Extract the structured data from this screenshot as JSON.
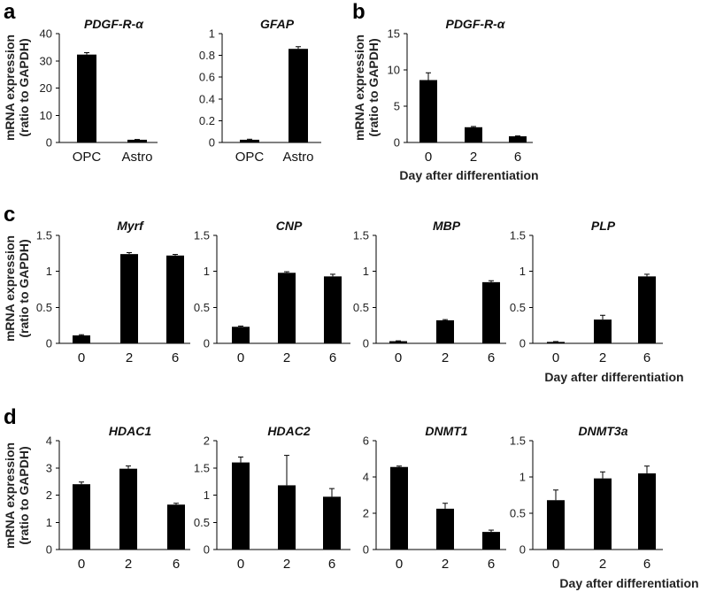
{
  "panel_labels": {
    "a": "a",
    "b": "b",
    "c": "c",
    "d": "d"
  },
  "ylabel_line1": "mRNA expression",
  "ylabel_line2": "(ratio to GAPDH)",
  "xlabel_day": "Day after differentiation",
  "chart_data": [
    {
      "id": "a1",
      "panel": "a",
      "type": "bar",
      "title": "PDGF-R-α",
      "categories": [
        "OPC",
        "Astro"
      ],
      "values": [
        32.3,
        1.0
      ],
      "errors": [
        0.7,
        0.1
      ],
      "ylim": [
        0,
        40
      ],
      "yticks": [
        0,
        10,
        20,
        30,
        40
      ],
      "ytick_labels": [
        "0",
        "10",
        "20",
        "30",
        "40"
      ]
    },
    {
      "id": "a2",
      "panel": "a",
      "type": "bar",
      "title": "GFAP",
      "categories": [
        "OPC",
        "Astro"
      ],
      "values": [
        0.025,
        0.86
      ],
      "errors": [
        0.005,
        0.02
      ],
      "ylim": [
        0,
        1
      ],
      "yticks": [
        0,
        0.2,
        0.4,
        0.6,
        0.8,
        1
      ],
      "ytick_labels": [
        "0",
        "0.2",
        "0.4",
        "0.6",
        "0.8",
        "1"
      ]
    },
    {
      "id": "b1",
      "panel": "b",
      "type": "bar",
      "title": "PDGF-R-α",
      "categories": [
        "0",
        "2",
        "6"
      ],
      "values": [
        8.6,
        2.1,
        0.85
      ],
      "errors": [
        1.0,
        0.1,
        0.05
      ],
      "ylim": [
        0,
        15
      ],
      "yticks": [
        0,
        5,
        10,
        15
      ],
      "ytick_labels": [
        "0",
        "5",
        "10",
        "15"
      ],
      "xlabel": "Day after differentiation"
    },
    {
      "id": "c1",
      "panel": "c",
      "type": "bar",
      "title": "Myrf",
      "categories": [
        "0",
        "2",
        "6"
      ],
      "values": [
        0.11,
        1.24,
        1.22
      ],
      "errors": [
        0.01,
        0.02,
        0.015
      ],
      "ylim": [
        0,
        1.5
      ],
      "yticks": [
        0,
        0.5,
        1,
        1.5
      ],
      "ytick_labels": [
        "0",
        "0.5",
        "1",
        "1.5"
      ]
    },
    {
      "id": "c2",
      "panel": "c",
      "type": "bar",
      "title": "CNP",
      "categories": [
        "0",
        "2",
        "6"
      ],
      "values": [
        0.23,
        0.98,
        0.93
      ],
      "errors": [
        0.01,
        0.015,
        0.03
      ],
      "ylim": [
        0,
        1.5
      ],
      "yticks": [
        0,
        0.5,
        1,
        1.5
      ],
      "ytick_labels": [
        "0",
        "0.5",
        "1",
        "1.5"
      ]
    },
    {
      "id": "c3",
      "panel": "c",
      "type": "bar",
      "title": "MBP",
      "categories": [
        "0",
        "2",
        "6"
      ],
      "values": [
        0.03,
        0.32,
        0.85
      ],
      "errors": [
        0.005,
        0.01,
        0.02
      ],
      "ylim": [
        0,
        1.5
      ],
      "yticks": [
        0,
        0.5,
        1,
        1.5
      ],
      "ytick_labels": [
        "0",
        "0.5",
        "1",
        "1.5"
      ]
    },
    {
      "id": "c4",
      "panel": "c",
      "type": "bar",
      "title": "PLP",
      "categories": [
        "0",
        "2",
        "6"
      ],
      "values": [
        0.02,
        0.33,
        0.93
      ],
      "errors": [
        0.005,
        0.06,
        0.03
      ],
      "ylim": [
        0,
        1.5
      ],
      "yticks": [
        0,
        0.5,
        1,
        1.5
      ],
      "ytick_labels": [
        "0",
        "0.5",
        "1",
        "1.5"
      ],
      "xlabel": "Day after differentiation"
    },
    {
      "id": "d1",
      "panel": "d",
      "type": "bar",
      "title": "HDAC1",
      "categories": [
        "0",
        "2",
        "6"
      ],
      "values": [
        2.4,
        2.97,
        1.65
      ],
      "errors": [
        0.08,
        0.1,
        0.05
      ],
      "ylim": [
        0,
        4
      ],
      "yticks": [
        0,
        1,
        2,
        3,
        4
      ],
      "ytick_labels": [
        "0",
        "1",
        "2",
        "3",
        "4"
      ]
    },
    {
      "id": "d2",
      "panel": "d",
      "type": "bar",
      "title": "HDAC2",
      "categories": [
        "0",
        "2",
        "6"
      ],
      "values": [
        1.6,
        1.18,
        0.97
      ],
      "errors": [
        0.1,
        0.55,
        0.15
      ],
      "ylim": [
        0,
        2
      ],
      "yticks": [
        0,
        0.5,
        1,
        1.5,
        2
      ],
      "ytick_labels": [
        "0",
        "0.5",
        "1",
        "1.5",
        "2"
      ]
    },
    {
      "id": "d3",
      "panel": "d",
      "type": "bar",
      "title": "DNMT1",
      "categories": [
        "0",
        "2",
        "6"
      ],
      "values": [
        4.55,
        2.25,
        0.97
      ],
      "errors": [
        0.05,
        0.3,
        0.1
      ],
      "ylim": [
        0,
        6
      ],
      "yticks": [
        0,
        2,
        4,
        6
      ],
      "ytick_labels": [
        "0",
        "2",
        "4",
        "6"
      ]
    },
    {
      "id": "d4",
      "panel": "d",
      "type": "bar",
      "title": "DNMT3a",
      "categories": [
        "0",
        "2",
        "6"
      ],
      "values": [
        0.68,
        0.98,
        1.05
      ],
      "errors": [
        0.14,
        0.09,
        0.1
      ],
      "ylim": [
        0,
        1.5
      ],
      "yticks": [
        0,
        0.5,
        1,
        1.5
      ],
      "ytick_labels": [
        "0",
        "0.5",
        "1",
        "1.5"
      ],
      "xlabel": "Day after differentiation"
    }
  ]
}
